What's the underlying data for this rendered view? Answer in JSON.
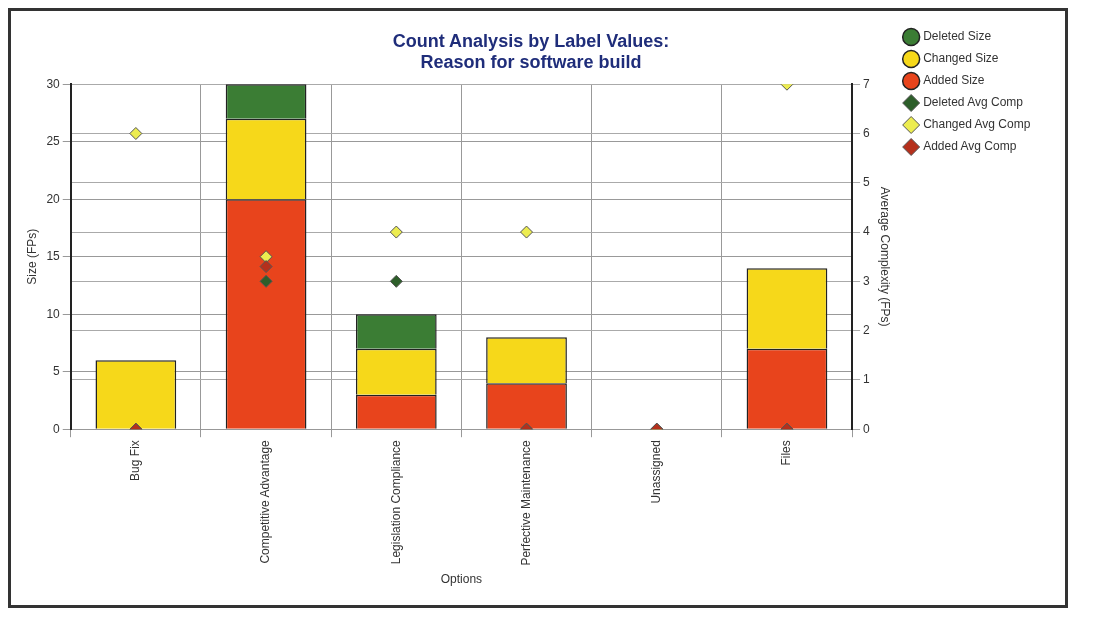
{
  "chart_data": {
    "type": "bar",
    "title": "Count Analysis by Label Values:\nReason for software build",
    "xlabel": "Options",
    "ylabel": "Size (FPs)",
    "y2label": "Average Complexity (FPs)",
    "categories": [
      "Bug Fix",
      "Competitive Advantage",
      "Legislation Compliance",
      "Perfective Maintenance",
      "Unassigned",
      "Files"
    ],
    "stacked": true,
    "grid": true,
    "legend": "top right",
    "marker": "diamond",
    "ylim": [
      0,
      30
    ],
    "yticks": [
      0,
      5,
      10,
      15,
      20,
      25,
      30
    ],
    "y2lim": [
      0,
      7
    ],
    "y2ticks": [
      0,
      1,
      2,
      3,
      4,
      5,
      6,
      7
    ],
    "series": [
      {
        "name": "Added Size",
        "color": "#e8441c",
        "values": [
          0,
          20,
          3,
          4,
          0,
          7
        ]
      },
      {
        "name": "Changed Size",
        "color": "#f6d81a",
        "values": [
          6,
          7,
          4,
          4,
          0,
          7
        ]
      },
      {
        "name": "Deleted Size",
        "color": "#3b7d34",
        "values": [
          0,
          3,
          3,
          0,
          0,
          0
        ]
      },
      {
        "name": "Added Avg Comp",
        "type": "scatter",
        "axis": "y2",
        "color": "#b5301c",
        "x": [
          "Bug Fix",
          "Competitive Advantage",
          "Legislation Compliance",
          "Perfective Maintenance",
          "Unassigned",
          "Files"
        ],
        "values": [
          0,
          3.3,
          null,
          0,
          0,
          0
        ]
      },
      {
        "name": "Changed Avg Comp",
        "type": "scatter",
        "axis": "y2",
        "color": "#ecec50",
        "x": [
          "Bug Fix",
          "Competitive Advantage",
          "Legislation Compliance",
          "Perfective Maintenance",
          "Unassigned",
          "Files"
        ],
        "values": [
          6,
          3.5,
          4,
          4,
          0,
          7
        ]
      },
      {
        "name": "Deleted Avg Comp",
        "type": "scatter",
        "axis": "y2",
        "color": "#2d5e2a",
        "x": [
          "Bug Fix",
          "Competitive Advantage",
          "Legislation Compliance",
          "Perfective Maintenance",
          "Unassigned",
          "Files"
        ],
        "values": [
          0,
          3,
          3,
          0,
          0,
          0
        ]
      }
    ]
  }
}
